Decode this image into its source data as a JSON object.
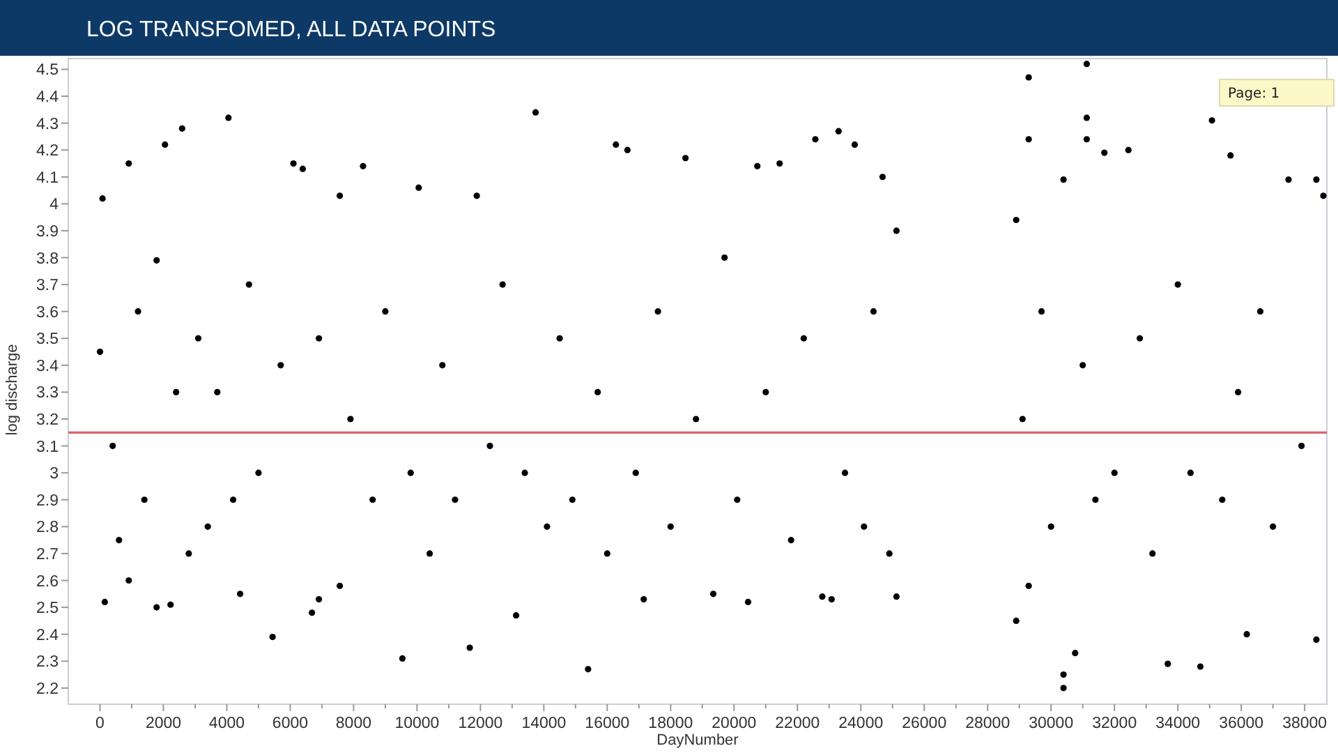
{
  "chart_data": {
    "type": "scatter",
    "title": "LOG TRANSFOMED, ALL DATA POINTS",
    "xlabel": "DayNumber",
    "ylabel": "log discharge",
    "annotations": [
      "Page: 1"
    ],
    "xlim": [
      -1000,
      38700
    ],
    "ylim": [
      2.14,
      4.54
    ],
    "xticks": [
      0,
      {
        "value": 1000,
        "label": null
      },
      2000,
      {
        "value": 3000,
        "label": null
      },
      4000,
      {
        "value": 5000,
        "label": null
      },
      6000,
      {
        "value": 7000,
        "label": null
      },
      8000,
      {
        "value": 9000,
        "label": null
      },
      10000,
      {
        "value": 11000,
        "label": null
      },
      12000,
      {
        "value": 13000,
        "label": null
      },
      14000,
      {
        "value": 15000,
        "label": null
      },
      16000,
      {
        "value": 17000,
        "label": null
      },
      18000,
      {
        "value": 19000,
        "label": null
      },
      20000,
      {
        "value": 21000,
        "label": null
      },
      22000,
      {
        "value": 23000,
        "label": null
      },
      24000,
      {
        "value": 25000,
        "label": null
      },
      26000,
      {
        "value": 27000,
        "label": null
      },
      28000,
      {
        "value": 29000,
        "label": null
      },
      30000,
      {
        "value": 31000,
        "label": null
      },
      32000,
      {
        "value": 33000,
        "label": null
      },
      34000,
      {
        "value": 35000,
        "label": null
      },
      36000,
      {
        "value": 37000,
        "label": null
      },
      38000
    ],
    "yticks": [
      2.2,
      2.3,
      2.4,
      2.5,
      2.6,
      2.7,
      2.8,
      2.9,
      3,
      3.1,
      3.2,
      3.3,
      3.4,
      3.5,
      3.6,
      3.7,
      3.8,
      3.9,
      4,
      4.1,
      4.2,
      4.3,
      4.4,
      4.5
    ],
    "marker": "circle",
    "ref_lines": [
      {
        "axis": "y",
        "value": 3.15,
        "color": "#d9646c"
      }
    ],
    "series": [
      {
        "color": "#000000",
        "x": [
          0,
          80,
          150,
          400,
          600,
          907,
          907,
          1200,
          1400,
          1786,
          1786,
          2050,
          2225,
          2400,
          2590,
          2800,
          3100,
          3400,
          3700,
          4052,
          4200,
          4420,
          4700,
          5000,
          5444,
          5700,
          6102,
          6395,
          6686,
          6906,
          6906,
          7564,
          7564,
          7900,
          8297,
          8600,
          9000,
          9540,
          9800,
          10053,
          10400,
          10800,
          11200,
          11664,
          11884,
          12300,
          12700,
          13126,
          13400,
          13741,
          14100,
          14500,
          14900,
          15396,
          15700,
          16000,
          16274,
          16638,
          16900,
          17152,
          17600,
          18000,
          18469,
          18800,
          19346,
          19700,
          20100,
          20444,
          20735,
          21000,
          21438,
          21800,
          22200,
          22565,
          22784,
          23078,
          23298,
          23500,
          23807,
          24100,
          24400,
          24685,
          24900,
          25124,
          25124,
          28900,
          28900,
          29100,
          29295,
          29295,
          29295,
          29700,
          30000,
          30393,
          30393,
          30393,
          30760,
          31000,
          31125,
          31125,
          31125,
          31400,
          31683,
          32000,
          32440,
          32800,
          33200,
          33683,
          34000,
          34400,
          34710,
          35076,
          35400,
          35660,
          35900,
          36174,
          36600,
          37000,
          37491,
          37900,
          38369,
          38369,
          38590
        ],
        "values": [
          3.45,
          4.02,
          2.52,
          3.1,
          2.75,
          4.15,
          2.6,
          3.6,
          2.9,
          2.5,
          3.79,
          4.22,
          2.51,
          3.3,
          4.28,
          2.7,
          3.5,
          2.8,
          3.3,
          4.32,
          2.9,
          2.55,
          3.7,
          3,
          2.39,
          3.4,
          4.15,
          4.13,
          2.48,
          2.53,
          3.5,
          4.03,
          2.58,
          3.2,
          4.14,
          2.9,
          3.6,
          2.31,
          3,
          4.06,
          2.7,
          3.4,
          2.9,
          2.35,
          4.03,
          3.1,
          3.7,
          2.47,
          3,
          4.34,
          2.8,
          3.5,
          2.9,
          2.27,
          3.3,
          2.7,
          4.22,
          4.2,
          3,
          2.53,
          3.6,
          2.8,
          4.17,
          3.2,
          2.55,
          3.8,
          2.9,
          2.52,
          4.14,
          3.3,
          4.15,
          2.75,
          3.5,
          4.24,
          2.54,
          2.53,
          4.27,
          3,
          4.22,
          2.8,
          3.6,
          4.1,
          2.7,
          3.9,
          2.54,
          3.94,
          2.45,
          3.2,
          4.47,
          4.24,
          2.58,
          3.6,
          2.8,
          2.2,
          2.25,
          4.09,
          2.33,
          3.4,
          4.52,
          4.32,
          4.24,
          2.9,
          4.19,
          3,
          4.2,
          3.5,
          2.7,
          2.29,
          3.7,
          3,
          2.28,
          4.31,
          2.9,
          4.18,
          3.3,
          2.4,
          3.6,
          2.8,
          4.09,
          3.1,
          2.38,
          4.09,
          4.03
        ]
      }
    ]
  }
}
